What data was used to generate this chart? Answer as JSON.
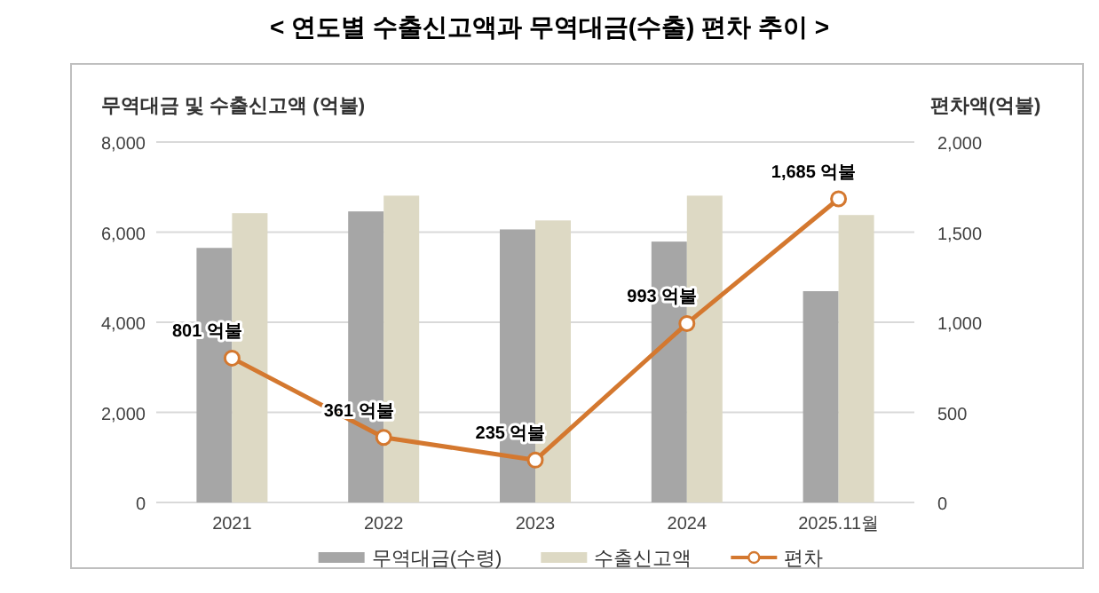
{
  "chart_data": {
    "type": "bar",
    "title": "< 연도별 수출신고액과 무역대금(수출) 편차 추이 >",
    "ylabel": "무역대금 및 수출신고액 (억불)",
    "y2label": "편차액(억불)",
    "categories": [
      "2021",
      "2022",
      "2023",
      "2024",
      "2025.11월"
    ],
    "series": [
      {
        "name": "무역대금(수령)",
        "color": "#a6a6a6",
        "values": [
          5650,
          6460,
          6060,
          5790,
          4690
        ]
      },
      {
        "name": "수출신고액",
        "color": "#ddd9c4",
        "values": [
          6420,
          6810,
          6260,
          6810,
          6380
        ]
      },
      {
        "name": "편차",
        "type": "line",
        "axis": "y2",
        "color": "#d4782f",
        "marker": "circle",
        "values": [
          801,
          361,
          235,
          993,
          1685
        ],
        "value_labels": [
          "801 억불",
          "361 억불",
          "235 억불",
          "993 억불",
          "1,685 억불"
        ]
      }
    ],
    "ylim": [
      0,
      8000
    ],
    "yticks": [
      0,
      {
        "value": 2000,
        "label": "2,000"
      },
      {
        "value": 4000,
        "label": "4,000"
      },
      {
        "value": 6000,
        "label": "6,000"
      },
      {
        "value": 8000,
        "label": "8,000"
      }
    ],
    "y2lim": [
      0,
      2000
    ],
    "y2ticks": [
      0,
      500,
      {
        "value": 1000,
        "label": "1,000"
      },
      {
        "value": 1500,
        "label": "1,500"
      },
      {
        "value": 2000,
        "label": "2,000"
      }
    ],
    "grid": "y",
    "legend": "bottom"
  }
}
